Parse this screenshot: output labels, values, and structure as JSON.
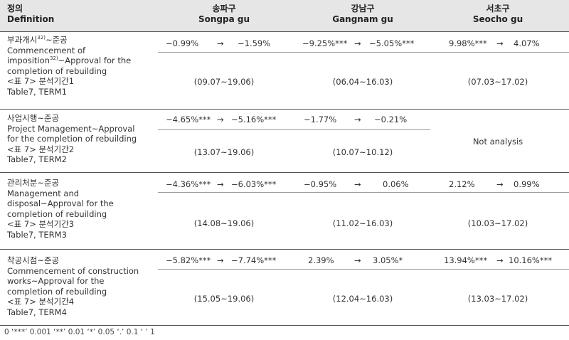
{
  "header": {
    "col0_ko": "정의",
    "col0_en": "Definition",
    "col1_ko": "송파구",
    "col1_en": "Songpa gu",
    "col2_ko": "강남구",
    "col2_en": "Gangnam gu",
    "col3_ko": "서초구",
    "col3_en": "Seocho gu"
  },
  "rows": [
    {
      "ko_pre": "부과개시",
      "sup1": "32)",
      "ko_post": "~준공",
      "en1_pre": "Commencement of",
      "en2_pre": "imposition",
      "sup2": "32)",
      "en2_post": "~Approval for the",
      "en3": "completion of rebuilding",
      "term_ko": "<표 7> 분석기간1",
      "term_en": "Table7, TERM1",
      "songpa": {
        "a": "−0.99%",
        "arrow": "→",
        "b": "−1.59%",
        "period": "(09.07~19.06)"
      },
      "gangnam": {
        "a": "−9.25%***",
        "arrow": "→",
        "b": "−5.05%***",
        "period": "(06.04~16.03)"
      },
      "seocho": {
        "a": "9.98%***",
        "arrow": "→",
        "b": "4.07%",
        "period": "(07.03~17.02)"
      }
    },
    {
      "ko": "사업시행~준공",
      "en1": "Project Management~Approval",
      "en2": "for the completion of rebuilding",
      "term_ko": "<표 7> 분석기간2",
      "term_en": "Table7, TERM2",
      "songpa": {
        "a": "−4.65%***",
        "arrow": "→",
        "b": "−5.16%***",
        "period": "(13.07~19.06)"
      },
      "gangnam": {
        "a": "−1.77%",
        "arrow": "→",
        "b": "−0.21%",
        "period": "(10.07~10.12)"
      },
      "seocho_note": "Not analysis"
    },
    {
      "ko": "관리처분~준공",
      "en1": "Management and",
      "en2": "disposal~Approval for the",
      "en3": "completion of rebuilding",
      "term_ko": "<표 7> 분석기간3",
      "term_en": "Table7, TERM3",
      "songpa": {
        "a": "−4.36%***",
        "arrow": "→",
        "b": "−6.03%***",
        "period": "(14.08~19.06)"
      },
      "gangnam": {
        "a": "−0.95%",
        "arrow": "→",
        "b": "0.06%",
        "period": "(11.02~16.03)"
      },
      "seocho": {
        "a": "2.12%",
        "arrow": "→",
        "b": "0.99%",
        "period": "(10.03~17.02)"
      }
    },
    {
      "ko": "착공시점~준공",
      "en1": "Commencement of construction",
      "en2": "works~Approval for the",
      "en3": "completion of rebuilding",
      "term_ko": "<표 7> 분석기간4",
      "term_en": "Table7, TERM4",
      "songpa": {
        "a": "−5.82%***",
        "arrow": "→",
        "b": "−7.74%***",
        "period": "(15.05~19.06)"
      },
      "gangnam": {
        "a": "2.39%",
        "arrow": "→",
        "b": "3.05%*",
        "period": "(12.04~16.03)"
      },
      "seocho": {
        "a": "13.94%***",
        "arrow": "→",
        "b": "10.16%***",
        "period": "(13.03~17.02)"
      }
    }
  ],
  "footnote": "0 ‘***’ 0.001 ‘**’ 0.01 ‘*’ 0.05 ‘.’ 0.1 ‘ ’ 1"
}
